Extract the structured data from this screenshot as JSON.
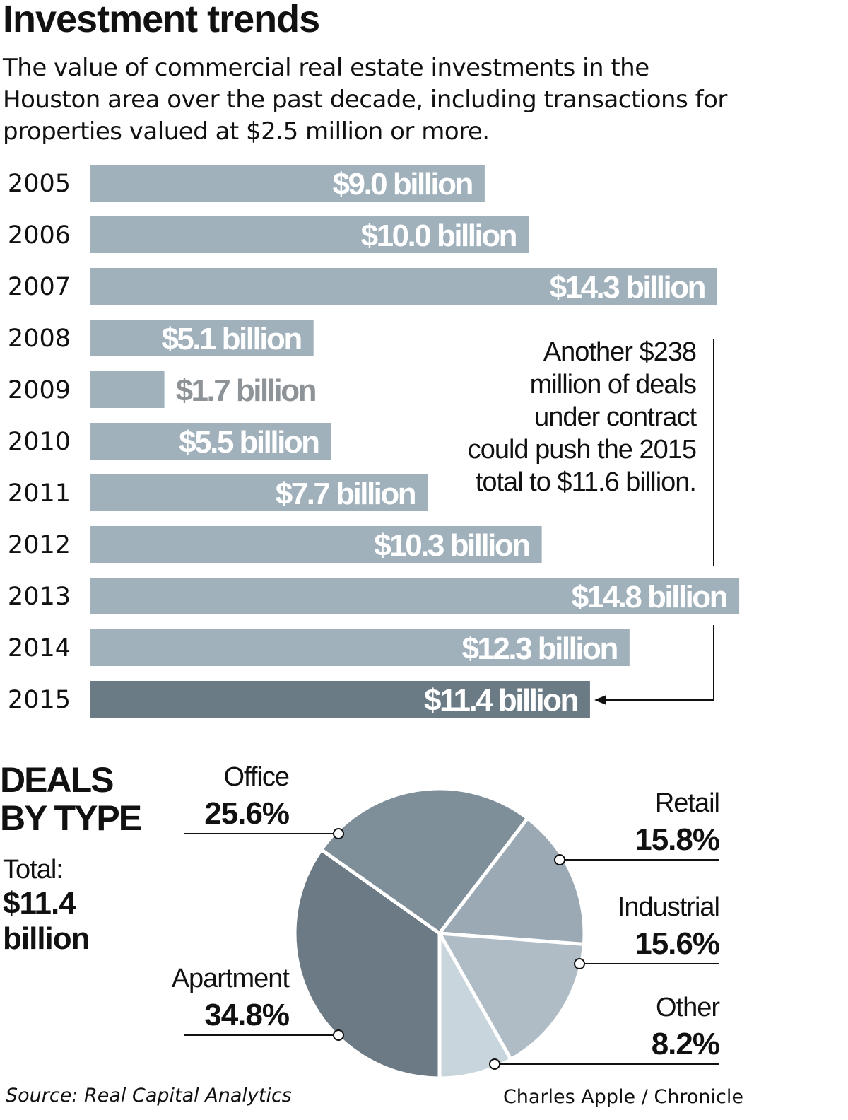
{
  "title": "Investment trends",
  "subtitle": "The value of commercial real estate investments in the Houston area over the past decade, including transactions for properties valued at $2.5 million or more.",
  "chart_data": [
    {
      "type": "bar",
      "orientation": "horizontal",
      "unit": "billion USD",
      "categories": [
        "2005",
        "2006",
        "2007",
        "2008",
        "2009",
        "2010",
        "2011",
        "2012",
        "2013",
        "2014",
        "2015"
      ],
      "values": [
        9.0,
        10.0,
        14.3,
        5.1,
        1.7,
        5.5,
        7.7,
        10.3,
        14.8,
        12.3,
        11.4
      ],
      "data_labels": [
        "$9.0 billion",
        "$10.0 billion",
        "$14.3 billion",
        "$5.1 billion",
        "$1.7 billion",
        "$5.5 billion",
        "$7.7 billion",
        "$10.3 billion",
        "$14.8 billion",
        "$12.3 billion",
        "$11.4 billion"
      ],
      "colors": {
        "bar": "#a0b1bc",
        "highlight": "#6b7b85",
        "highlight_category": "2015",
        "outside_label": "#8e9398"
      },
      "annotation": "Another $238 million of deals under contract could push the 2015 total to $11.6 billion.",
      "annotation_lines": [
        "Another $238",
        "million of deals",
        "under contract",
        "could push the 2015",
        "total to $11.6 billion."
      ]
    },
    {
      "type": "pie",
      "title": "DEALS BY TYPE",
      "title_lines": [
        "DEALS",
        "BY TYPE"
      ],
      "total_label": "Total:",
      "total_value_lines": [
        "$11.4",
        "billion"
      ],
      "slices": [
        {
          "label": "Apartment",
          "value": 34.8,
          "pct": "34.8%",
          "color": "#6b7a84"
        },
        {
          "label": "Office",
          "value": 25.6,
          "pct": "25.6%",
          "color": "#7f8f9a"
        },
        {
          "label": "Retail",
          "value": 15.8,
          "pct": "15.8%",
          "color": "#9aa9b3"
        },
        {
          "label": "Industrial",
          "value": 15.6,
          "pct": "15.6%",
          "color": "#afbcc5"
        },
        {
          "label": "Other",
          "value": 8.2,
          "pct": "8.2%",
          "color": "#c8d5dc"
        }
      ]
    }
  ],
  "source": "Source: Real Capital Analytics",
  "credit": "Charles Apple / Chronicle"
}
